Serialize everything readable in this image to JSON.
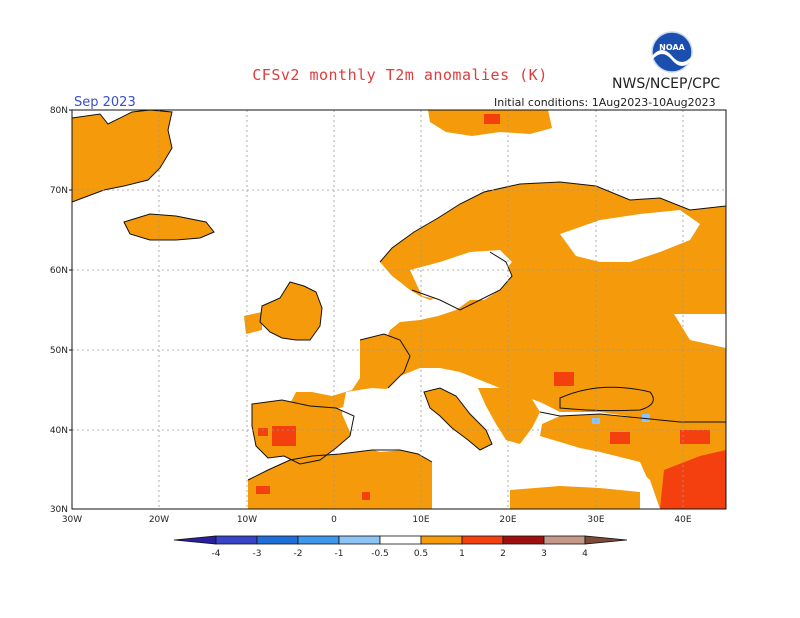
{
  "title": "CFSv2 monthly T2m anomalies (K)",
  "agency": "NWS/NCEP/CPC",
  "logo_text": "NOAA",
  "valid_month": "Sep 2023",
  "initial_conditions": "Initial conditions: 1Aug2023-10Aug2023",
  "lat_labels": [
    "80N",
    "70N",
    "60N",
    "50N",
    "40N",
    "30N"
  ],
  "lon_labels": [
    "30W",
    "20W",
    "10W",
    "0",
    "10E",
    "20E",
    "30E",
    "40E"
  ],
  "colorbar": {
    "labels": [
      "-4",
      "-3",
      "-2",
      "-1",
      "-0.5",
      "0.5",
      "1",
      "2",
      "3",
      "4"
    ],
    "colors": [
      "#2a1f9e",
      "#3a44c8",
      "#1f6fd8",
      "#3d97ea",
      "#8cc4f5",
      "#ffffff",
      "#f59a0a",
      "#f43f0e",
      "#9e0f0f",
      "#c4998a",
      "#7d4a38"
    ]
  },
  "map": {
    "lat_range": [
      30,
      80
    ],
    "lon_range": [
      -30,
      45
    ],
    "anomaly_colors": {
      "warm_0_5_1": "#f59a0a",
      "warm_1_2": "#f43f0e",
      "cool_0_5_1": "#8cc4f5"
    }
  }
}
